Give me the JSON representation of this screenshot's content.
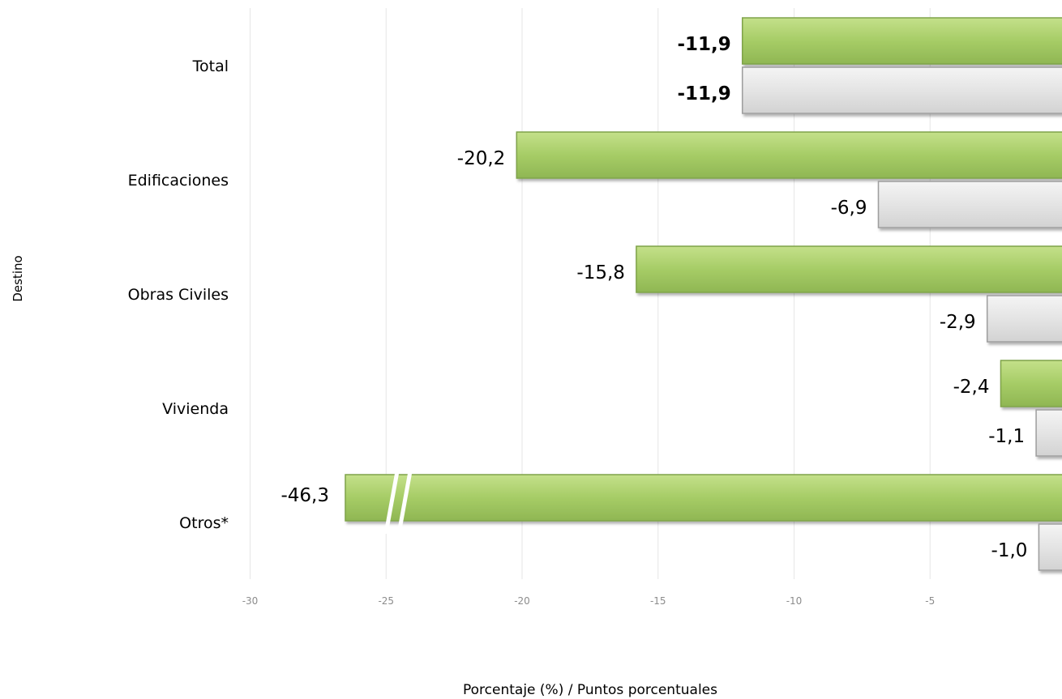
{
  "chart_data": {
    "type": "bar",
    "orientation": "horizontal",
    "xlabel": "Porcentaje (%) / Puntos porcentuales",
    "ylabel": "Destino",
    "xlim": [
      -30,
      0
    ],
    "xticks": [
      -30,
      -25,
      -20,
      -15,
      -10,
      -5
    ],
    "tick_labels": [
      "-30",
      "-25",
      "-20",
      "-15",
      "-10",
      "-5"
    ],
    "grid": true,
    "categories": [
      "Total",
      "Edificaciones",
      "Obras Civiles",
      "Vivienda",
      "Otros*"
    ],
    "series": [
      {
        "color": "#a6cc66",
        "values": [
          -11.9,
          -20.2,
          -15.8,
          -2.4,
          -46.3
        ],
        "labels": [
          "-11,9",
          "-20,2",
          "-15,8",
          "-2,4",
          "-46,3"
        ]
      },
      {
        "color": "#e4e4e4",
        "values": [
          -11.9,
          -6.9,
          -2.9,
          -1.1,
          -1.0
        ],
        "labels": [
          "-11,9",
          "-6,9",
          "-2,9",
          "-1,1",
          "-1,0"
        ]
      }
    ],
    "bold_categories": [
      "Total"
    ],
    "axis_break": {
      "category": "Otros*",
      "series": 0
    }
  }
}
